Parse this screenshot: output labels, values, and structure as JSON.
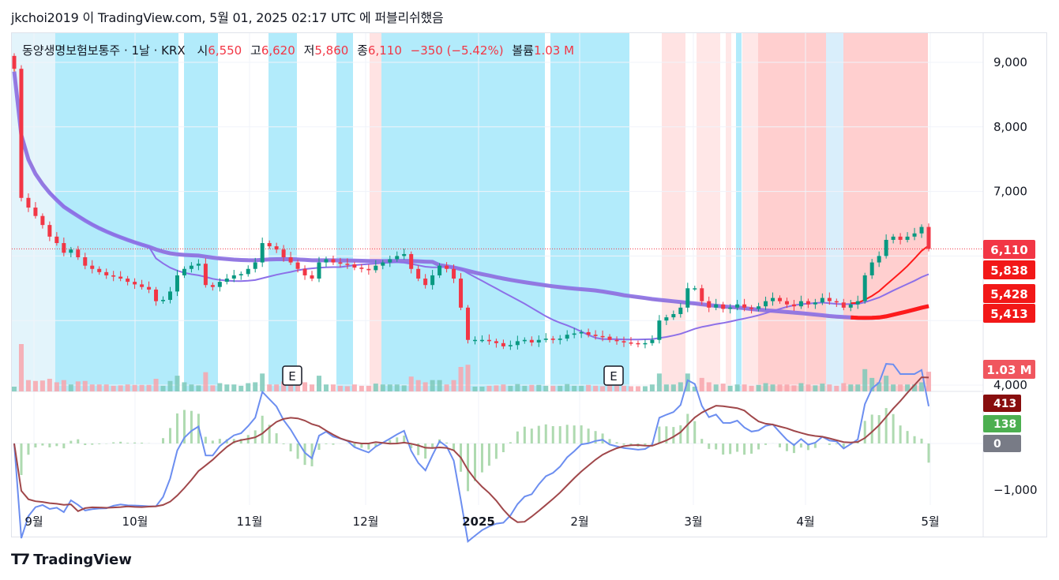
{
  "header": {
    "publish_line": "jkchoi2019 이 TradingView.com, 5월 01, 2025 02:17 UTC 에 퍼블리쉬했음"
  },
  "legend": {
    "symbol": "동양생명보험보통주 · 1날 · KRX",
    "open_label": "시",
    "open": "6,550",
    "high_label": "고",
    "high": "6,620",
    "low_label": "저",
    "low": "5,860",
    "close_label": "종",
    "close": "6,110",
    "change": "−350 (−5.42%)",
    "volume_label": "볼륨",
    "volume": "1.03 M"
  },
  "footer": {
    "brand": "TradingView"
  },
  "colors": {
    "up": "#089981",
    "down": "#f23645",
    "ma_purple": "#8a6ee6",
    "ma_orange": "#f7c16b",
    "ma_red": "#ff1a1a",
    "band_cyan": "#b2ebfb",
    "band_pink": "#ffcfcf"
  },
  "chart_data": {
    "type": "candlestick",
    "price_axis": {
      "ticks": [
        4000,
        5000,
        6000,
        7000,
        8000,
        9000
      ],
      "tick_labels": [
        "4,000",
        "",
        "",
        "7,000",
        "8,000",
        "9,000"
      ],
      "ylim": [
        3900,
        9500
      ]
    },
    "time_axis": {
      "labels": [
        "9월",
        "10월",
        "11월",
        "12월",
        "2025",
        "2월",
        "3월",
        "4월",
        "5월"
      ]
    },
    "price_badges": [
      {
        "value": 6110,
        "label": "6,110",
        "color": "#f23645"
      },
      {
        "value": 5838,
        "label": "5,838",
        "color": "#f21818"
      },
      {
        "value": 5428,
        "label": "5,428",
        "color": "#f21818"
      },
      {
        "value": 5413,
        "label": "5,413",
        "color": "#f21818"
      },
      {
        "label": "1.03 M",
        "color": "#f0565e"
      }
    ],
    "events": [
      "E",
      "E"
    ],
    "candles_close": [
      8900,
      6900,
      6750,
      6620,
      6480,
      6300,
      6200,
      6050,
      6100,
      5980,
      5850,
      5800,
      5750,
      5700,
      5680,
      5650,
      5600,
      5560,
      5520,
      5480,
      5300,
      5320,
      5450,
      5700,
      5800,
      5850,
      5880,
      5550,
      5520,
      5600,
      5650,
      5700,
      5720,
      5800,
      5900,
      6200,
      6150,
      6100,
      5980,
      5900,
      5800,
      5700,
      5650,
      5900,
      5950,
      5900,
      5880,
      5870,
      5820,
      5800,
      5780,
      5850,
      5900,
      5950,
      6000,
      6030,
      5800,
      5650,
      5550,
      5700,
      5850,
      5800,
      5650,
      5200,
      4700,
      4700,
      4700,
      4680,
      4650,
      4600,
      4620,
      4680,
      4700,
      4660,
      4700,
      4720,
      4700,
      4720,
      4780,
      4800,
      4820,
      4780,
      4760,
      4750,
      4700,
      4680,
      4660,
      4650,
      4640,
      4650,
      4700,
      5000,
      5050,
      5100,
      5200,
      5500,
      5500,
      5300,
      5200,
      5250,
      5180,
      5200,
      5250,
      5200,
      5180,
      5220,
      5300,
      5350,
      5300,
      5250,
      5220,
      5300,
      5250,
      5280,
      5350,
      5300,
      5280,
      5200,
      5250,
      5300,
      5700,
      5900,
      6000,
      6250,
      6300,
      6250,
      6300,
      6350,
      6450,
      6110
    ],
    "volume_label": "1.03 M",
    "macd": {
      "tick_labels": [
        "0",
        "−1,000"
      ],
      "badges": [
        {
          "label": "413",
          "color": "#880e0e"
        },
        {
          "label": "138",
          "color": "#4caf50"
        },
        {
          "label": "0",
          "color": "#787b86"
        }
      ]
    }
  }
}
